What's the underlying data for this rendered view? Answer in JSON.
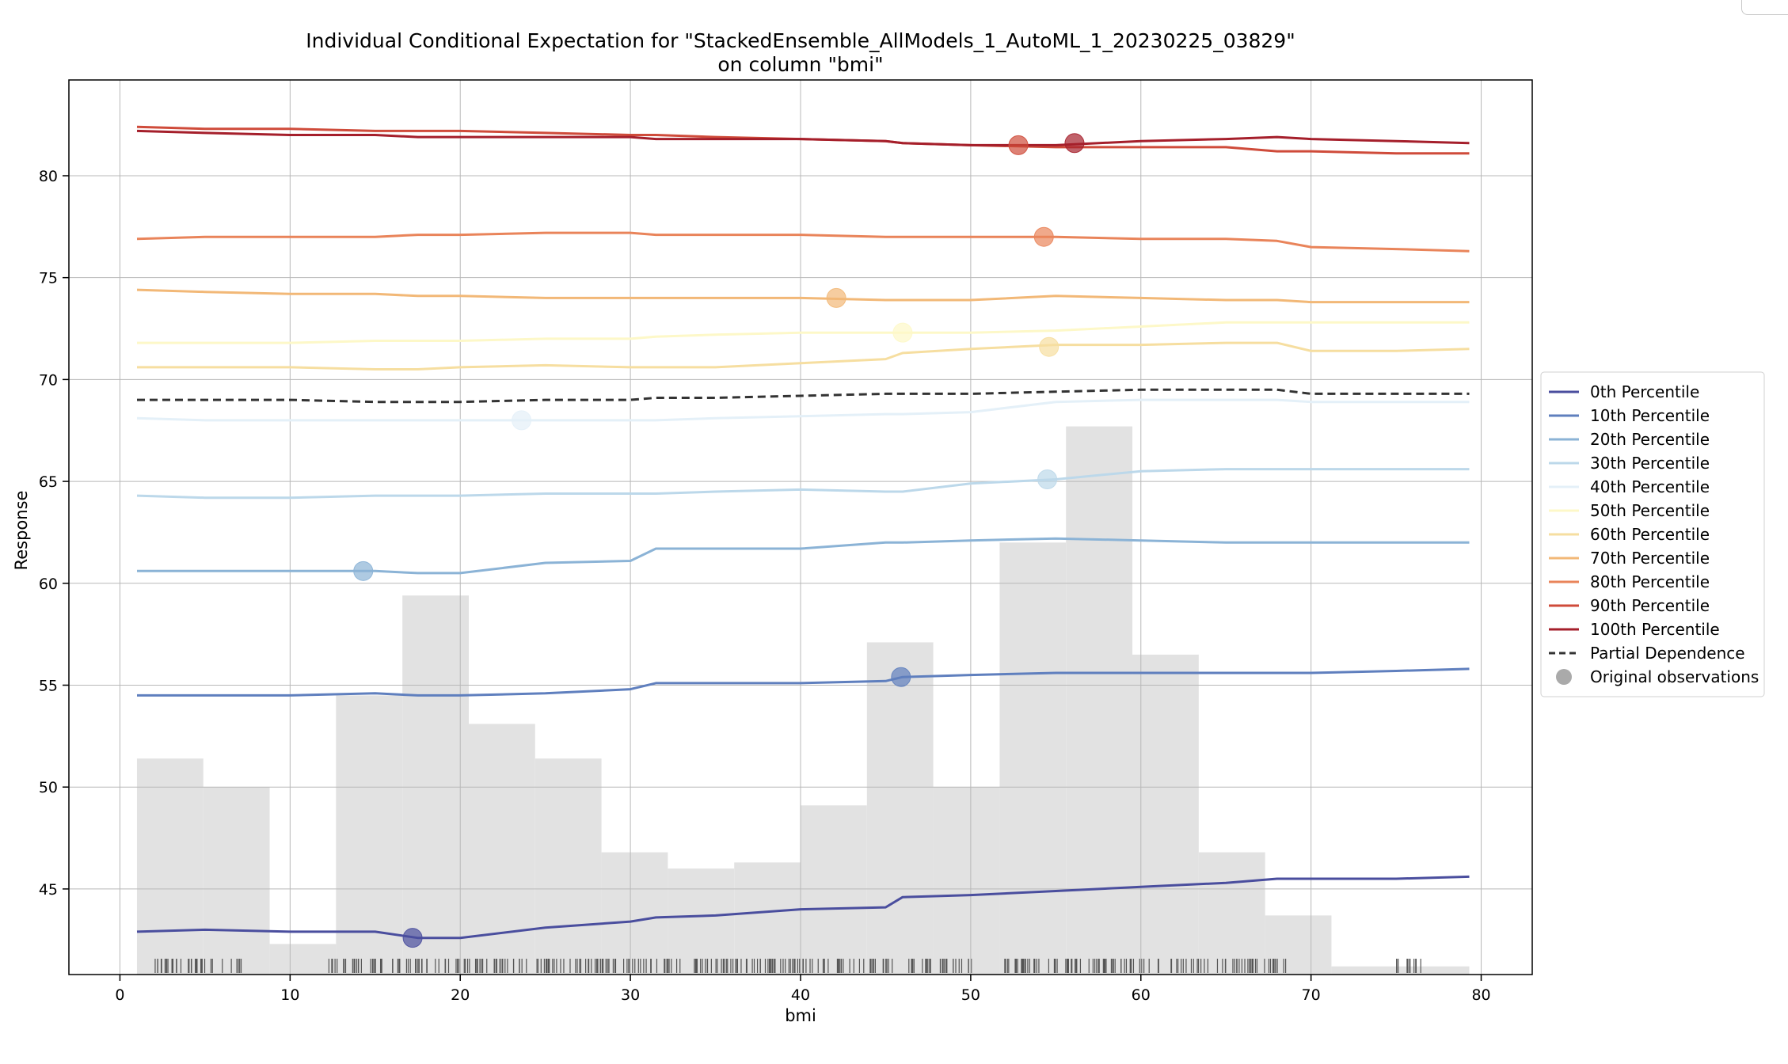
{
  "chart_data": {
    "type": "line",
    "title": "Individual Conditional Expectation for \"StackedEnsemble_AllModels_1_AutoML_1_20230225_03829\"",
    "subtitle": "on column \"bmi\"",
    "xlabel": "bmi",
    "ylabel": "Response",
    "xlim": [
      -3,
      83
    ],
    "ylim": [
      40.8,
      84.7
    ],
    "xticks": [
      0,
      10,
      20,
      30,
      40,
      50,
      60,
      70,
      80
    ],
    "yticks": [
      45,
      50,
      55,
      60,
      65,
      70,
      75,
      80
    ],
    "grid": true,
    "legend_position": "right",
    "x": [
      1,
      5,
      10,
      15,
      17.5,
      20,
      25,
      30,
      31.5,
      35,
      40,
      45,
      46,
      50,
      55,
      60,
      65,
      68,
      70,
      75,
      79.3
    ],
    "series": [
      {
        "name": "0th Percentile",
        "color": "#4a4e9e",
        "style": "solid",
        "values": [
          42.9,
          43.0,
          42.9,
          42.9,
          42.6,
          42.6,
          43.1,
          43.4,
          43.6,
          43.7,
          44.0,
          44.1,
          44.6,
          44.7,
          44.9,
          45.1,
          45.3,
          45.5,
          45.5,
          45.5,
          45.6
        ]
      },
      {
        "name": "10th Percentile",
        "color": "#5f7fbe",
        "style": "solid",
        "values": [
          54.5,
          54.5,
          54.5,
          54.6,
          54.5,
          54.5,
          54.6,
          54.8,
          55.1,
          55.1,
          55.1,
          55.2,
          55.4,
          55.5,
          55.6,
          55.6,
          55.6,
          55.6,
          55.6,
          55.7,
          55.8
        ]
      },
      {
        "name": "20th Percentile",
        "color": "#8bb3d6",
        "style": "solid",
        "values": [
          60.6,
          60.6,
          60.6,
          60.6,
          60.5,
          60.5,
          61.0,
          61.1,
          61.7,
          61.7,
          61.7,
          62.0,
          62.0,
          62.1,
          62.2,
          62.1,
          62.0,
          62.0,
          62.0,
          62.0,
          62.0
        ]
      },
      {
        "name": "30th Percentile",
        "color": "#bcd8ea",
        "style": "solid",
        "values": [
          64.3,
          64.2,
          64.2,
          64.3,
          64.3,
          64.3,
          64.4,
          64.4,
          64.4,
          64.5,
          64.6,
          64.5,
          64.5,
          64.9,
          65.1,
          65.5,
          65.6,
          65.6,
          65.6,
          65.6,
          65.6
        ]
      },
      {
        "name": "40th Percentile",
        "color": "#e4f0f8",
        "style": "solid",
        "values": [
          68.1,
          68.0,
          68.0,
          68.0,
          68.0,
          68.0,
          68.0,
          68.0,
          68.0,
          68.1,
          68.2,
          68.3,
          68.3,
          68.4,
          68.9,
          69.0,
          69.0,
          69.0,
          68.9,
          68.9,
          68.9
        ]
      },
      {
        "name": "50th Percentile",
        "color": "#fdf8c8",
        "style": "solid",
        "values": [
          71.8,
          71.8,
          71.8,
          71.9,
          71.9,
          71.9,
          72.0,
          72.0,
          72.1,
          72.2,
          72.3,
          72.3,
          72.3,
          72.3,
          72.4,
          72.6,
          72.8,
          72.8,
          72.8,
          72.8,
          72.8
        ]
      },
      {
        "name": "60th Percentile",
        "color": "#f6dea0",
        "style": "solid",
        "values": [
          70.6,
          70.6,
          70.6,
          70.5,
          70.5,
          70.6,
          70.7,
          70.6,
          70.6,
          70.6,
          70.8,
          71.0,
          71.3,
          71.5,
          71.7,
          71.7,
          71.8,
          71.8,
          71.4,
          71.4,
          71.5
        ]
      },
      {
        "name": "70th Percentile",
        "color": "#f2b877",
        "style": "solid",
        "values": [
          74.4,
          74.3,
          74.2,
          74.2,
          74.1,
          74.1,
          74.0,
          74.0,
          74.0,
          74.0,
          74.0,
          73.9,
          73.9,
          73.9,
          74.1,
          74.0,
          73.9,
          73.9,
          73.8,
          73.8,
          73.8
        ]
      },
      {
        "name": "80th Percentile",
        "color": "#e9845a",
        "style": "solid",
        "values": [
          76.9,
          77.0,
          77.0,
          77.0,
          77.1,
          77.1,
          77.2,
          77.2,
          77.1,
          77.1,
          77.1,
          77.0,
          77.0,
          77.0,
          77.0,
          76.9,
          76.9,
          76.8,
          76.5,
          76.4,
          76.3
        ]
      },
      {
        "name": "90th Percentile",
        "color": "#cf4b3a",
        "style": "solid",
        "values": [
          82.4,
          82.3,
          82.3,
          82.2,
          82.2,
          82.2,
          82.1,
          82.0,
          82.0,
          81.9,
          81.8,
          81.7,
          81.6,
          81.5,
          81.4,
          81.4,
          81.4,
          81.2,
          81.2,
          81.1,
          81.1
        ]
      },
      {
        "name": "100th Percentile",
        "color": "#a51f2b",
        "style": "solid",
        "values": [
          82.2,
          82.1,
          82.0,
          82.0,
          81.9,
          81.9,
          81.9,
          81.9,
          81.8,
          81.8,
          81.8,
          81.7,
          81.6,
          81.5,
          81.5,
          81.7,
          81.8,
          81.9,
          81.8,
          81.7,
          81.6
        ]
      },
      {
        "name": "Partial Dependence",
        "color": "#333333",
        "style": "dashed",
        "values": [
          69.0,
          69.0,
          69.0,
          68.9,
          68.9,
          68.9,
          69.0,
          69.0,
          69.1,
          69.1,
          69.2,
          69.3,
          69.3,
          69.3,
          69.4,
          69.5,
          69.5,
          69.5,
          69.3,
          69.3,
          69.3
        ]
      }
    ],
    "observations": {
      "name": "Original observations",
      "points": [
        {
          "x": 17.2,
          "y": 42.6,
          "color": "#4a4e9e"
        },
        {
          "x": 45.9,
          "y": 55.4,
          "color": "#5f7fbe"
        },
        {
          "x": 14.3,
          "y": 60.6,
          "color": "#8bb3d6"
        },
        {
          "x": 54.5,
          "y": 65.1,
          "color": "#bcd8ea"
        },
        {
          "x": 23.6,
          "y": 68.0,
          "color": "#e4f0f8"
        },
        {
          "x": 46.0,
          "y": 72.3,
          "color": "#fdf8c8"
        },
        {
          "x": 54.6,
          "y": 71.6,
          "color": "#f6dea0"
        },
        {
          "x": 42.1,
          "y": 74.0,
          "color": "#f2b877"
        },
        {
          "x": 54.3,
          "y": 77.0,
          "color": "#e9845a"
        },
        {
          "x": 52.8,
          "y": 81.5,
          "color": "#cf4b3a"
        },
        {
          "x": 56.1,
          "y": 81.6,
          "color": "#a51f2b"
        }
      ]
    },
    "histogram": {
      "color": "#e2e2e2",
      "bins": [
        {
          "x0": 1.0,
          "x1": 4.9,
          "y": 51.4
        },
        {
          "x0": 4.9,
          "x1": 8.8,
          "y": 50.0
        },
        {
          "x0": 8.8,
          "x1": 12.7,
          "y": 42.3
        },
        {
          "x0": 12.7,
          "x1": 16.6,
          "y": 54.5
        },
        {
          "x0": 16.6,
          "x1": 20.5,
          "y": 59.4
        },
        {
          "x0": 20.5,
          "x1": 24.4,
          "y": 53.1
        },
        {
          "x0": 24.4,
          "x1": 28.3,
          "y": 51.4
        },
        {
          "x0": 28.3,
          "x1": 32.2,
          "y": 46.8
        },
        {
          "x0": 32.2,
          "x1": 36.1,
          "y": 46.0
        },
        {
          "x0": 36.1,
          "x1": 40.0,
          "y": 46.3
        },
        {
          "x0": 40.0,
          "x1": 43.9,
          "y": 49.1
        },
        {
          "x0": 43.9,
          "x1": 47.8,
          "y": 57.1
        },
        {
          "x0": 47.8,
          "x1": 51.7,
          "y": 50.0
        },
        {
          "x0": 51.7,
          "x1": 55.6,
          "y": 62.0
        },
        {
          "x0": 55.6,
          "x1": 59.5,
          "y": 67.7
        },
        {
          "x0": 59.5,
          "x1": 63.4,
          "y": 56.5
        },
        {
          "x0": 63.4,
          "x1": 67.3,
          "y": 46.8
        },
        {
          "x0": 67.3,
          "x1": 71.2,
          "y": 43.7
        },
        {
          "x0": 71.2,
          "x1": 79.3,
          "y": 41.2
        }
      ]
    },
    "rug": {
      "color": "#555555",
      "ranges": [
        [
          1.8,
          7.2
        ],
        [
          12.2,
          24.0
        ],
        [
          24.5,
          33.0
        ],
        [
          33.5,
          45.5
        ],
        [
          46.0,
          50.2
        ],
        [
          52.0,
          64.0
        ],
        [
          64.5,
          69.0
        ],
        [
          75.0,
          76.5
        ]
      ]
    }
  }
}
